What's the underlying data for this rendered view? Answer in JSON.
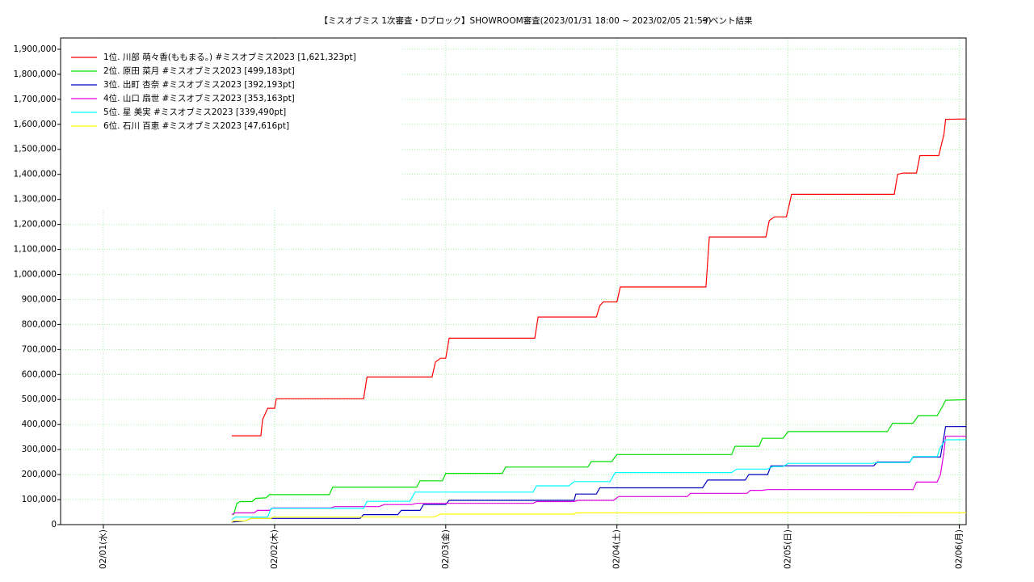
{
  "chart_data": {
    "type": "line",
    "title": "【ミスオブミス 1次審査・Dブロック】SHOWROOM審査(2023/01/31 18:00 ~ 2023/02/05 21:59)",
    "subtitle": "イベント結果",
    "xlim": [
      -0.25,
      5.04
    ],
    "xticks": [
      {
        "value": 0,
        "label": "02/01(水)"
      },
      {
        "value": 1,
        "label": "02/02(木)"
      },
      {
        "value": 2,
        "label": "02/03(金)"
      },
      {
        "value": 3,
        "label": "02/04(土)"
      },
      {
        "value": 4,
        "label": "02/05(日)"
      },
      {
        "value": 5,
        "label": "02/06(月)"
      }
    ],
    "ylim": [
      0,
      1945000
    ],
    "yticks": [
      0,
      {
        "value": 100000,
        "label": "100,000"
      },
      {
        "value": 200000,
        "label": "200,000"
      },
      {
        "value": 300000,
        "label": "300,000"
      },
      {
        "value": 400000,
        "label": "400,000"
      },
      {
        "value": 500000,
        "label": "500,000"
      },
      {
        "value": 600000,
        "label": "600,000"
      },
      {
        "value": 700000,
        "label": "700,000"
      },
      {
        "value": 800000,
        "label": "800,000"
      },
      {
        "value": 900000,
        "label": "900,000"
      },
      {
        "value": 1000000,
        "label": "1,000,000"
      },
      {
        "value": 1100000,
        "label": "1,100,000"
      },
      {
        "value": 1200000,
        "label": "1,200,000"
      },
      {
        "value": 1300000,
        "label": "1,300,000"
      },
      {
        "value": 1400000,
        "label": "1,400,000"
      },
      {
        "value": 1500000,
        "label": "1,500,000"
      },
      {
        "value": 1600000,
        "label": "1,600,000"
      },
      {
        "value": 1700000,
        "label": "1,700,000"
      },
      {
        "value": 1800000,
        "label": "1,800,000"
      },
      {
        "value": 1900000,
        "label": "1,900,000"
      }
    ],
    "grid": true,
    "legend": "upper-left",
    "series": [
      {
        "name": "1位. 川部 萌々香(ももまる。) #ミスオブミス2023 [1,621,323pt]",
        "color": "#ff0000",
        "x": [
          0.75,
          0.92,
          0.93,
          0.96,
          1.0,
          1.01,
          1.52,
          1.54,
          1.92,
          1.94,
          1.97,
          2.0,
          2.02,
          2.52,
          2.54,
          2.88,
          2.9,
          2.92,
          3.0,
          3.02,
          3.52,
          3.54,
          3.87,
          3.89,
          3.92,
          3.99,
          4.02,
          4.62,
          4.64,
          4.67,
          4.75,
          4.77,
          4.88,
          4.91,
          4.92,
          5.04
        ],
        "values": [
          355000,
          355000,
          420000,
          465000,
          465000,
          503000,
          503000,
          590000,
          590000,
          650000,
          665000,
          665000,
          745000,
          745000,
          830000,
          830000,
          875000,
          890000,
          890000,
          950000,
          950000,
          1150000,
          1150000,
          1215000,
          1230000,
          1230000,
          1320000,
          1320000,
          1400000,
          1405000,
          1405000,
          1475000,
          1475000,
          1560000,
          1620000,
          1621323
        ]
      },
      {
        "name": "2位. 原田 菜月 #ミスオブミス2023 [499,183pt]",
        "color": "#00e000",
        "x": [
          0.76,
          0.78,
          0.8,
          0.87,
          0.89,
          0.95,
          0.97,
          1.32,
          1.34,
          1.83,
          1.85,
          1.98,
          2.0,
          2.33,
          2.35,
          2.83,
          2.85,
          2.97,
          3.0,
          3.67,
          3.69,
          3.83,
          3.85,
          3.97,
          4.0,
          4.58,
          4.61,
          4.73,
          4.76,
          4.87,
          4.9,
          4.92,
          5.04
        ],
        "values": [
          38000,
          85000,
          92000,
          92000,
          105000,
          107000,
          120000,
          120000,
          150000,
          150000,
          175000,
          175000,
          205000,
          205000,
          230000,
          230000,
          252000,
          252000,
          280000,
          280000,
          313000,
          313000,
          345000,
          345000,
          372000,
          372000,
          405000,
          405000,
          435000,
          435000,
          470000,
          497000,
          499183
        ]
      },
      {
        "name": "3位. 出町 杏奈 #ミスオブミス2023 [392,193pt]",
        "color": "#0000c0",
        "x": [
          0.75,
          0.83,
          0.86,
          1.5,
          1.52,
          1.72,
          1.74,
          1.85,
          1.87,
          2.0,
          2.02,
          2.75,
          2.76,
          2.88,
          2.9,
          3.5,
          3.53,
          3.75,
          3.77,
          3.88,
          3.9,
          4.5,
          4.52,
          4.71,
          4.73,
          4.89,
          4.92,
          5.04
        ],
        "values": [
          10000,
          15000,
          25000,
          25000,
          40000,
          40000,
          57000,
          57000,
          80000,
          80000,
          97000,
          97000,
          122000,
          122000,
          147000,
          147000,
          178000,
          178000,
          200000,
          200000,
          235000,
          235000,
          250000,
          250000,
          270000,
          270000,
          392000,
          392193
        ]
      },
      {
        "name": "4位. 山口 扇世 #ミスオブミス2023 [353,163pt]",
        "color": "#e000e0",
        "x": [
          0.75,
          0.77,
          0.88,
          0.9,
          0.97,
          0.99,
          1.33,
          1.35,
          1.61,
          1.64,
          1.8,
          1.83,
          2.51,
          2.53,
          2.75,
          2.77,
          2.98,
          3.01,
          3.41,
          3.43,
          3.76,
          3.78,
          3.85,
          3.88,
          4.73,
          4.75,
          4.87,
          4.89,
          4.91,
          4.92,
          5.04
        ],
        "values": [
          40000,
          47000,
          47000,
          57000,
          57000,
          67000,
          67000,
          72000,
          72000,
          80000,
          80000,
          85000,
          85000,
          92000,
          92000,
          97000,
          97000,
          112000,
          112000,
          125000,
          125000,
          137000,
          137000,
          140000,
          140000,
          170000,
          170000,
          200000,
          290000,
          353000,
          353163
        ]
      },
      {
        "name": "5位. 星 美実 #ミスオブミス2023 [339,490pt]",
        "color": "#00ffff",
        "x": [
          0.75,
          0.77,
          0.96,
          0.98,
          1.52,
          1.54,
          1.79,
          1.82,
          2.51,
          2.53,
          2.72,
          2.75,
          2.96,
          2.99,
          3.67,
          3.7,
          3.88,
          3.91,
          3.97,
          4.0,
          4.49,
          4.52,
          4.71,
          4.73,
          4.87,
          4.89,
          4.92,
          5.04
        ],
        "values": [
          20000,
          30000,
          30000,
          65000,
          65000,
          93000,
          93000,
          130000,
          130000,
          155000,
          155000,
          172000,
          172000,
          208000,
          208000,
          222000,
          222000,
          232000,
          232000,
          245000,
          245000,
          248000,
          248000,
          272000,
          272000,
          310000,
          339000,
          339490
        ]
      },
      {
        "name": "6位. 石川 百恵 #ミスオブミス2023 [47,616pt]",
        "color": "#ffff00",
        "x": [
          0.75,
          0.76,
          0.83,
          0.86,
          0.98,
          0.99,
          1.93,
          1.97,
          2.75,
          2.76,
          5.04
        ],
        "values": [
          10000,
          15000,
          15000,
          25000,
          25000,
          30000,
          30000,
          42000,
          42000,
          47000,
          47616
        ]
      }
    ]
  }
}
